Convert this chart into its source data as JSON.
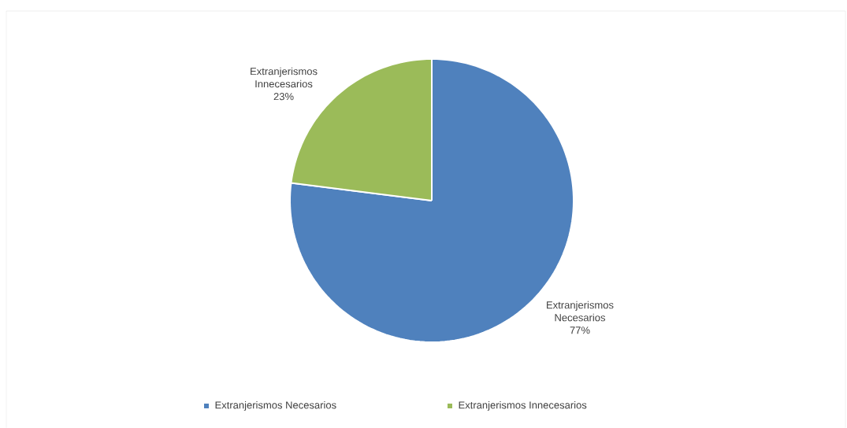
{
  "chart_data": {
    "type": "pie",
    "categories": [
      "Extranjerismos Necesarios",
      "Extranjerismos Innecesarios"
    ],
    "values": [
      77,
      23
    ],
    "colors": [
      "#4f81bd",
      "#9bbb59"
    ],
    "value_labels": [
      "77%",
      "23%"
    ],
    "legend": "bottom"
  }
}
